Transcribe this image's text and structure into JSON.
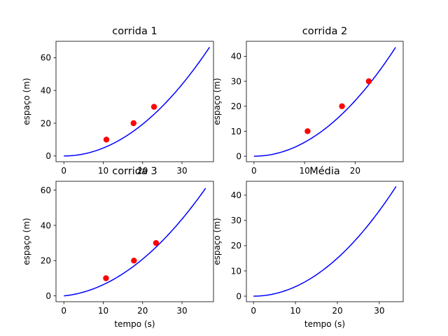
{
  "colors": {
    "curve": "#0000ff",
    "points": "#ff0000",
    "axes": "#000000",
    "background": "#ffffff"
  },
  "chart_data": [
    {
      "type": "line",
      "title": "corrida 1",
      "xlabel": "",
      "ylabel": "espaço (m)",
      "xlim": [
        -2,
        38
      ],
      "ylim": [
        -3.5,
        70
      ],
      "xticks": [
        0,
        10,
        20,
        30
      ],
      "yticks": [
        0,
        20,
        40,
        60
      ],
      "grid": false,
      "curve": {
        "a": 0.0485,
        "b": 0.0,
        "x_max": 37
      },
      "points": {
        "x": [
          10.8,
          17.7,
          22.9
        ],
        "y": [
          10,
          20,
          30
        ]
      }
    },
    {
      "type": "line",
      "title": "corrida 2",
      "xlabel": "",
      "ylabel": "espaço (m)",
      "xlim": [
        -1.5,
        29.5
      ],
      "ylim": [
        -2.2,
        46
      ],
      "xticks": [
        0,
        10,
        20
      ],
      "yticks": [
        0,
        10,
        20,
        30,
        40
      ],
      "grid": false,
      "curve": {
        "a": 0.0556,
        "b": 0.0,
        "x_max": 28
      },
      "points": {
        "x": [
          10.6,
          17.4,
          22.7
        ],
        "y": [
          10,
          20,
          30
        ]
      }
    },
    {
      "type": "line",
      "title": "corrida 3",
      "xlabel": "tempo (s)",
      "ylabel": "espaço (m)",
      "xlim": [
        -2,
        38
      ],
      "ylim": [
        -3.3,
        65
      ],
      "xticks": [
        0,
        10,
        20,
        30
      ],
      "yticks": [
        0,
        20,
        40,
        60
      ],
      "grid": false,
      "curve": {
        "a": 0.0408,
        "b": 0.2275,
        "x_max": 36
      },
      "points": {
        "x": [
          10.7,
          17.8,
          23.4
        ],
        "y": [
          10,
          20,
          30
        ]
      }
    },
    {
      "type": "line",
      "title": "Média",
      "xlabel": "tempo (s)",
      "ylabel": "espaço (m)",
      "xlim": [
        -1.7,
        35.7
      ],
      "ylim": [
        -2.2,
        45.5
      ],
      "xticks": [
        0,
        10,
        20,
        30
      ],
      "yticks": [
        0,
        10,
        20,
        30,
        40
      ],
      "grid": false,
      "curve": {
        "a": 0.0376,
        "b": 0.0,
        "x_max": 34
      },
      "points": {
        "x": [],
        "y": []
      }
    }
  ]
}
